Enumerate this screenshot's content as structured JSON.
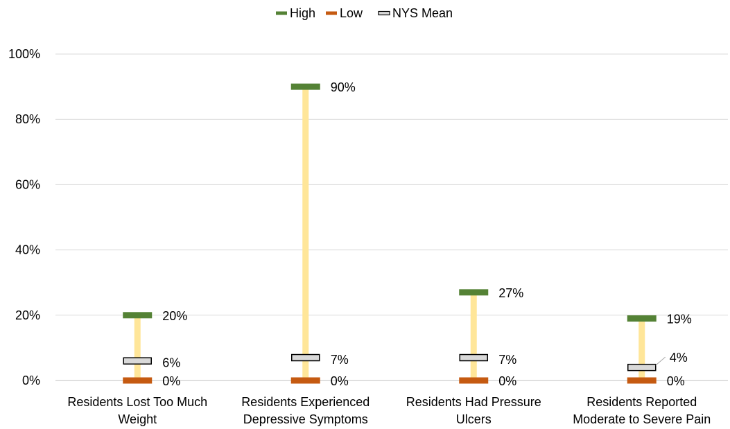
{
  "chart_data": {
    "type": "range",
    "categories": [
      [
        "Residents Lost Too Much",
        "Weight"
      ],
      [
        "Residents Experienced",
        "Depressive Symptoms"
      ],
      [
        "Residents Had Pressure",
        "Ulcers"
      ],
      [
        "Residents Reported",
        "Moderate to Severe Pain"
      ]
    ],
    "series": [
      {
        "name": "High",
        "values": [
          20,
          90,
          27,
          19
        ],
        "color": "#548235"
      },
      {
        "name": "Low",
        "values": [
          0,
          0,
          0,
          0
        ],
        "color": "#C55A11"
      },
      {
        "name": "NYS Mean",
        "values": [
          6,
          7,
          7,
          4
        ],
        "color": "#D9D9D9"
      }
    ],
    "range_bar_color": "#FFE699",
    "yticks": [
      0,
      20,
      40,
      60,
      80,
      100
    ],
    "ylim": [
      0,
      100
    ],
    "tick_format": "{v}%",
    "grid": true,
    "legend_position": "top"
  }
}
